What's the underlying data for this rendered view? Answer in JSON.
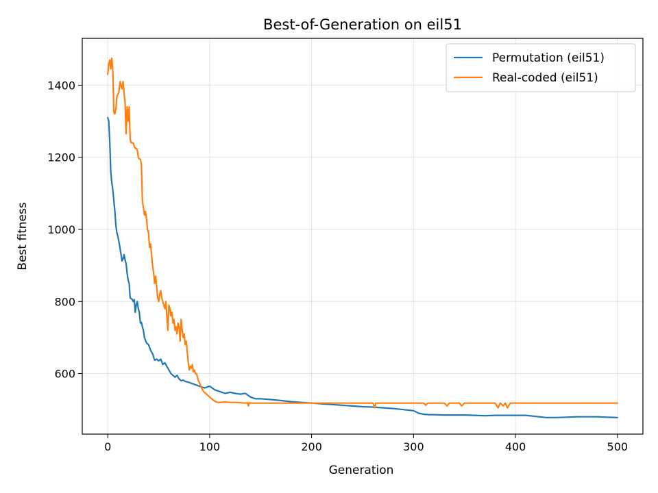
{
  "chart_data": {
    "type": "line",
    "title": "Best-of-Generation on eil51",
    "xlabel": "Generation",
    "ylabel": "Best fitness",
    "xlim": [
      -25,
      525
    ],
    "ylim": [
      432,
      1530
    ],
    "xticks": [
      0,
      100,
      200,
      300,
      400,
      500
    ],
    "yticks": [
      600,
      800,
      1000,
      1200,
      1400
    ],
    "grid": true,
    "legend_position": "top-right",
    "series": [
      {
        "name": "Permutation (eil51)",
        "color": "#1f77b4",
        "x": [
          0,
          1,
          2,
          3,
          4,
          5,
          6,
          7,
          8,
          9,
          10,
          12,
          14,
          15,
          16,
          17,
          18,
          19,
          20,
          21,
          22,
          23,
          24,
          25,
          26,
          27,
          28,
          29,
          30,
          31,
          32,
          33,
          34,
          35,
          36,
          38,
          40,
          42,
          44,
          46,
          48,
          50,
          52,
          54,
          56,
          58,
          60,
          62,
          64,
          66,
          68,
          70,
          72,
          74,
          76,
          78,
          80,
          85,
          90,
          95,
          100,
          105,
          110,
          115,
          120,
          125,
          130,
          135,
          140,
          145,
          150,
          160,
          170,
          180,
          190,
          200,
          210,
          220,
          230,
          240,
          250,
          260,
          270,
          280,
          290,
          300,
          305,
          310,
          315,
          320,
          330,
          340,
          350,
          360,
          370,
          380,
          390,
          400,
          410,
          420,
          430,
          440,
          450,
          460,
          470,
          480,
          490,
          500
        ],
        "y": [
          1310,
          1300,
          1240,
          1160,
          1130,
          1110,
          1080,
          1050,
          1010,
          990,
          980,
          950,
          912,
          918,
          930,
          915,
          905,
          880,
          860,
          850,
          810,
          808,
          806,
          800,
          805,
          770,
          790,
          800,
          780,
          770,
          740,
          742,
          730,
          720,
          700,
          685,
          680,
          665,
          655,
          637,
          640,
          635,
          640,
          625,
          630,
          620,
          610,
          600,
          595,
          590,
          595,
          585,
          580,
          582,
          578,
          577,
          575,
          570,
          565,
          560,
          565,
          555,
          550,
          545,
          548,
          545,
          543,
          545,
          535,
          530,
          530,
          528,
          525,
          522,
          520,
          518,
          516,
          514,
          512,
          510,
          508,
          507,
          505,
          503,
          500,
          497,
          490,
          487,
          486,
          486,
          485,
          485,
          485,
          484,
          483,
          484,
          484,
          484,
          484,
          481,
          478,
          478,
          479,
          480,
          480,
          480,
          479,
          478
        ]
      },
      {
        "name": "Real-coded (eil51)",
        "color": "#ff7f0e",
        "x": [
          0,
          1,
          2,
          3,
          4,
          5,
          6,
          7,
          8,
          9,
          10,
          11,
          12,
          13,
          14,
          15,
          16,
          17,
          18,
          19,
          20,
          21,
          22,
          23,
          24,
          25,
          26,
          27,
          28,
          29,
          30,
          31,
          32,
          33,
          34,
          35,
          36,
          37,
          38,
          39,
          40,
          41,
          42,
          43,
          44,
          45,
          46,
          47,
          48,
          49,
          50,
          51,
          52,
          53,
          54,
          55,
          56,
          57,
          58,
          59,
          60,
          61,
          62,
          63,
          64,
          65,
          66,
          67,
          68,
          69,
          70,
          71,
          72,
          73,
          74,
          75,
          76,
          77,
          78,
          79,
          80,
          81,
          82,
          83,
          84,
          85,
          86,
          87,
          88,
          89,
          90,
          92,
          94,
          96,
          98,
          100,
          102,
          104,
          106,
          108,
          110,
          115,
          120,
          125,
          130,
          135,
          137,
          138,
          139,
          140,
          145,
          150,
          160,
          170,
          180,
          190,
          200,
          220,
          240,
          260,
          262,
          263,
          265,
          280,
          300,
          310,
          312,
          314,
          320,
          330,
          333,
          335,
          340,
          345,
          347,
          350,
          360,
          370,
          380,
          383,
          385,
          388,
          390,
          392,
          395,
          398,
          400,
          420,
          440,
          460,
          480,
          500
        ],
        "y": [
          1430,
          1460,
          1470,
          1445,
          1475,
          1440,
          1325,
          1320,
          1335,
          1370,
          1375,
          1380,
          1410,
          1400,
          1390,
          1410,
          1380,
          1350,
          1265,
          1340,
          1300,
          1340,
          1250,
          1240,
          1240,
          1240,
          1230,
          1225,
          1225,
          1220,
          1200,
          1195,
          1195,
          1180,
          1080,
          1060,
          1040,
          1050,
          1030,
          1000,
          990,
          950,
          960,
          930,
          900,
          880,
          850,
          870,
          840,
          810,
          800,
          820,
          830,
          810,
          800,
          790,
          780,
          800,
          760,
          720,
          790,
          780,
          760,
          770,
          740,
          750,
          720,
          730,
          710,
          740,
          730,
          690,
          750,
          720,
          700,
          710,
          680,
          690,
          660,
          630,
          610,
          620,
          615,
          625,
          605,
          610,
          600,
          600,
          590,
          580,
          575,
          560,
          550,
          545,
          540,
          535,
          530,
          525,
          522,
          520,
          520,
          521,
          520,
          520,
          519,
          518,
          519,
          510,
          519,
          518,
          518,
          518,
          518,
          518,
          518,
          518,
          518,
          518,
          518,
          518,
          505,
          518,
          518,
          518,
          518,
          518,
          512,
          518,
          518,
          518,
          510,
          518,
          518,
          518,
          510,
          518,
          518,
          518,
          518,
          505,
          518,
          510,
          518,
          505,
          518,
          518,
          518,
          518,
          518,
          518,
          518,
          518
        ]
      }
    ]
  }
}
